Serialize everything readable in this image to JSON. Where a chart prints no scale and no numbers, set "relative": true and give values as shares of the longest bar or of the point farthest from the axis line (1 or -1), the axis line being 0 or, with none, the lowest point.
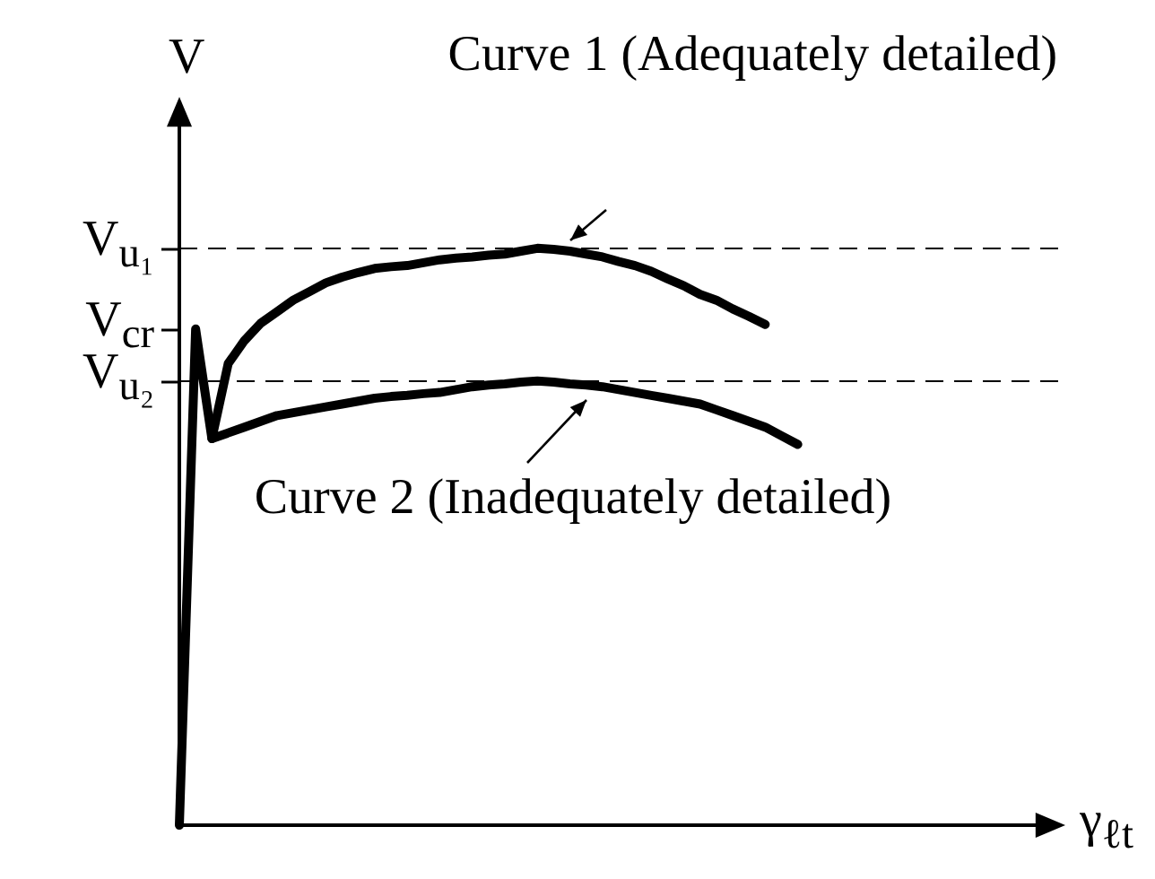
{
  "chart_data": {
    "type": "line",
    "relative": true,
    "xlabel": "γ$_{ℓt}$",
    "ylabel": "V",
    "color": "#000000",
    "marker": "none",
    "line_style": "solid",
    "categories": [
      null,
      null,
      null,
      null,
      null,
      null,
      null,
      null,
      null,
      null,
      null,
      null,
      null,
      null,
      null,
      null,
      null,
      null,
      null,
      null,
      null,
      null,
      null,
      null,
      null,
      null,
      null,
      null,
      null,
      null,
      null,
      null,
      null,
      null,
      null,
      null,
      null,
      null,
      null,
      null,
      null,
      null,
      null,
      null,
      null,
      null,
      null,
      null,
      null,
      null,
      null,
      null,
      null,
      null,
      null
    ],
    "series": [
      {
        "values": [
          null,
          null,
          0.67,
          0.8,
          0.84,
          0.87,
          0.89,
          0.91,
          0.925,
          0.94,
          0.95,
          0.958,
          0.965,
          0.968,
          0.97,
          0.975,
          0.98,
          0.983,
          0.985,
          0.988,
          0.99,
          0.995,
          1,
          0.998,
          0.995,
          0.99,
          0.985,
          0.977,
          0.97,
          0.96,
          0.947,
          0.935,
          0.92,
          0.91,
          0.895,
          0.882,
          0.868,
          null,
          null,
          null,
          null,
          null,
          null,
          null,
          null,
          null,
          null,
          null,
          null,
          null,
          null,
          null,
          null,
          null,
          null
        ]
      },
      {
        "values": [
          0,
          0.86,
          0.67,
          0.68,
          0.69,
          0.7,
          0.71,
          0.715,
          0.72,
          0.725,
          0.73,
          0.735,
          0.74,
          0.743,
          0.745,
          0.748,
          0.75,
          0.755,
          0.76,
          0.763,
          0.765,
          0.768,
          0.77,
          0.768,
          0.765,
          0.763,
          0.76,
          0.755,
          0.75,
          0.745,
          0.74,
          0.735,
          0.73,
          0.72,
          0.71,
          0.7,
          0.69,
          0.675,
          0.66,
          null,
          null,
          null,
          null,
          null,
          null,
          null,
          null,
          null,
          null,
          null,
          null,
          null,
          null,
          null,
          null
        ]
      }
    ],
    "ref_lines": [
      {
        "axis": "y",
        "value": 1,
        "label": "V$_{u₁}$",
        "line_style": "dashed"
      },
      {
        "axis": "y",
        "value": 0.86,
        "label": "V$_{cr}$"
      },
      {
        "axis": "y",
        "value": 0.77,
        "label": "V$_{u₂}$",
        "line_style": "dashed"
      }
    ],
    "annotations": [
      "Curve 1 (Adequately detailed)",
      "Curve 2 (Inadequately detailed)"
    ]
  }
}
